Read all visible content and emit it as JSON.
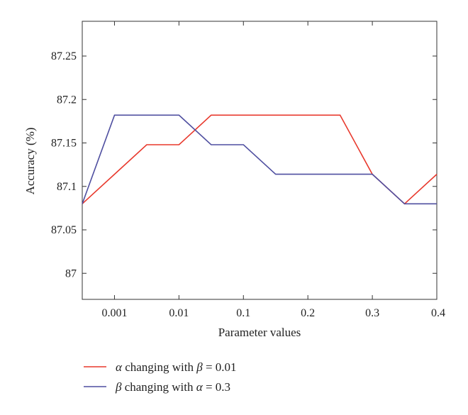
{
  "chart_data": {
    "type": "line",
    "xlabel": "Parameter values",
    "ylabel": "Accuracy (%)",
    "x_tick_labels": [
      "0.001",
      "0.01",
      "0.1",
      "0.2",
      "0.3",
      "0.4"
    ],
    "y_ticks": [
      "87",
      "87.05",
      "87.1",
      "87.15",
      "87.2",
      "87.25"
    ],
    "ylim": [
      86.97,
      87.29
    ],
    "x_positions": [
      "",
      "0.001",
      "",
      "0.01",
      "",
      "0.1",
      "",
      "0.2",
      "",
      "0.3",
      "",
      "0.4"
    ],
    "series": [
      {
        "name_parts": [
          "α",
          " changing with ",
          "β",
          " = 0.01"
        ],
        "color": "#e8382c",
        "values": [
          87.08,
          87.114,
          87.148,
          87.148,
          87.182,
          87.182,
          87.182,
          87.182,
          87.182,
          87.114,
          87.08,
          87.114
        ]
      },
      {
        "name_parts": [
          "β",
          " changing with ",
          "α",
          " = 0.3"
        ],
        "color": "#4f4fa0",
        "values": [
          87.08,
          87.182,
          87.182,
          87.182,
          87.148,
          87.148,
          87.114,
          87.114,
          87.114,
          87.114,
          87.08,
          87.08
        ]
      }
    ],
    "grid": false,
    "legend_position": "bottom-left"
  }
}
